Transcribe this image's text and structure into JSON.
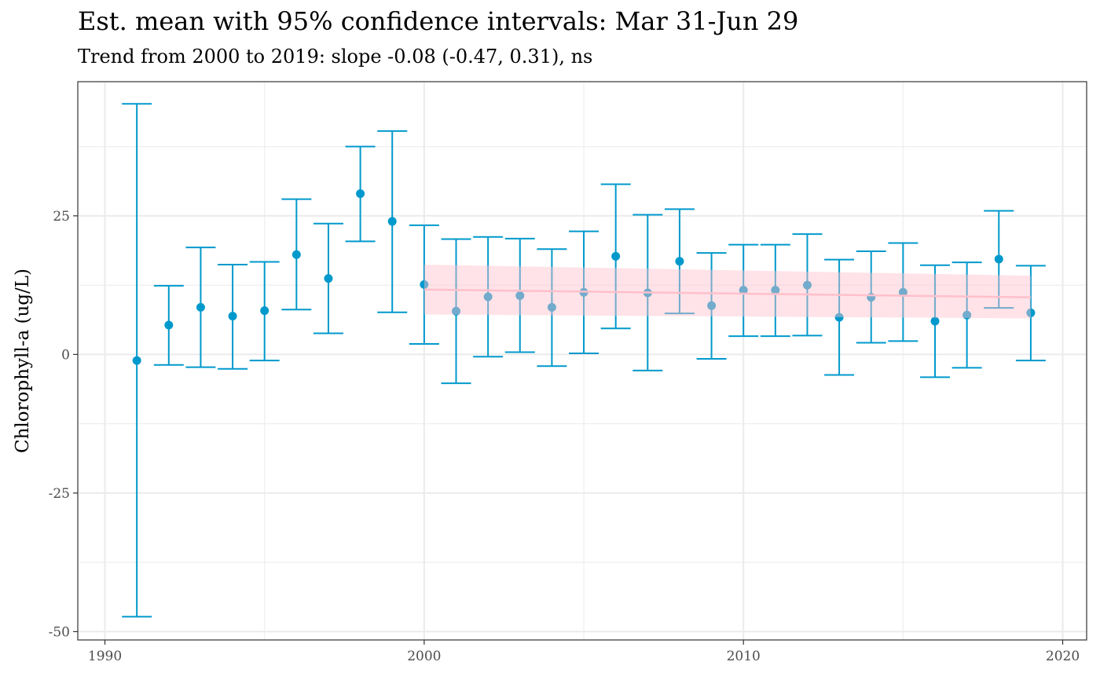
{
  "title": "Est. mean with 95% confidence intervals: Mar 31-Jun 29",
  "subtitle": "Trend from 2000 to 2019: slope -0.08 (-0.47, 0.31), ns",
  "chart_data": {
    "type": "scatter",
    "ylabel": "Chlorophyll-a (ug/L)",
    "xlabel": "",
    "xlim": [
      1989.15,
      2020.75
    ],
    "ylim": [
      -51.5,
      49.2
    ],
    "x_ticks": [
      1990,
      2000,
      2010,
      2020
    ],
    "y_ticks": [
      -50,
      -25,
      0,
      25
    ],
    "x_tick_labels": [
      "1990",
      "2000",
      "2010",
      "2020"
    ],
    "y_tick_labels": [
      "-50",
      "-25",
      "0",
      "25"
    ],
    "grid": true,
    "points_color": "#0099cc",
    "trend_color": "#ffc0cb",
    "points": [
      {
        "x": 1991,
        "y": -1.1,
        "lo": -47.3,
        "hi": 45.2
      },
      {
        "x": 1992,
        "y": 5.3,
        "lo": -1.9,
        "hi": 12.4
      },
      {
        "x": 1993,
        "y": 8.5,
        "lo": -2.3,
        "hi": 19.3
      },
      {
        "x": 1994,
        "y": 6.9,
        "lo": -2.6,
        "hi": 16.2
      },
      {
        "x": 1995,
        "y": 7.9,
        "lo": -1.1,
        "hi": 16.7
      },
      {
        "x": 1996,
        "y": 18.0,
        "lo": 8.1,
        "hi": 28.0
      },
      {
        "x": 1997,
        "y": 13.7,
        "lo": 3.8,
        "hi": 23.6
      },
      {
        "x": 1998,
        "y": 29.0,
        "lo": 20.4,
        "hi": 37.5
      },
      {
        "x": 1999,
        "y": 24.0,
        "lo": 7.6,
        "hi": 40.3
      },
      {
        "x": 2000,
        "y": 12.6,
        "lo": 1.9,
        "hi": 23.3
      },
      {
        "x": 2001,
        "y": 7.8,
        "lo": -5.2,
        "hi": 20.8
      },
      {
        "x": 2002,
        "y": 10.4,
        "lo": -0.4,
        "hi": 21.2
      },
      {
        "x": 2003,
        "y": 10.6,
        "lo": 0.4,
        "hi": 20.9
      },
      {
        "x": 2004,
        "y": 8.5,
        "lo": -2.1,
        "hi": 19.0
      },
      {
        "x": 2005,
        "y": 11.2,
        "lo": 0.2,
        "hi": 22.2
      },
      {
        "x": 2006,
        "y": 17.7,
        "lo": 4.7,
        "hi": 30.7
      },
      {
        "x": 2007,
        "y": 11.1,
        "lo": -2.9,
        "hi": 25.2
      },
      {
        "x": 2008,
        "y": 16.8,
        "lo": 7.4,
        "hi": 26.2
      },
      {
        "x": 2009,
        "y": 8.8,
        "lo": -0.8,
        "hi": 18.3
      },
      {
        "x": 2010,
        "y": 11.6,
        "lo": 3.3,
        "hi": 19.8
      },
      {
        "x": 2011,
        "y": 11.6,
        "lo": 3.3,
        "hi": 19.8
      },
      {
        "x": 2012,
        "y": 12.5,
        "lo": 3.4,
        "hi": 21.7
      },
      {
        "x": 2013,
        "y": 6.7,
        "lo": -3.7,
        "hi": 17.1
      },
      {
        "x": 2014,
        "y": 10.3,
        "lo": 2.1,
        "hi": 18.6
      },
      {
        "x": 2015,
        "y": 11.2,
        "lo": 2.4,
        "hi": 20.1
      },
      {
        "x": 2016,
        "y": 6.0,
        "lo": -4.1,
        "hi": 16.1
      },
      {
        "x": 2017,
        "y": 7.1,
        "lo": -2.4,
        "hi": 16.6
      },
      {
        "x": 2018,
        "y": 17.2,
        "lo": 8.4,
        "hi": 25.9
      },
      {
        "x": 2019,
        "y": 7.5,
        "lo": -1.1,
        "hi": 16.0
      }
    ],
    "trend": {
      "x": [
        2000,
        2019
      ],
      "y": [
        11.7,
        10.3
      ],
      "band_lo": [
        7.2,
        6.5
      ],
      "band_hi": [
        16.2,
        14.2
      ]
    }
  }
}
